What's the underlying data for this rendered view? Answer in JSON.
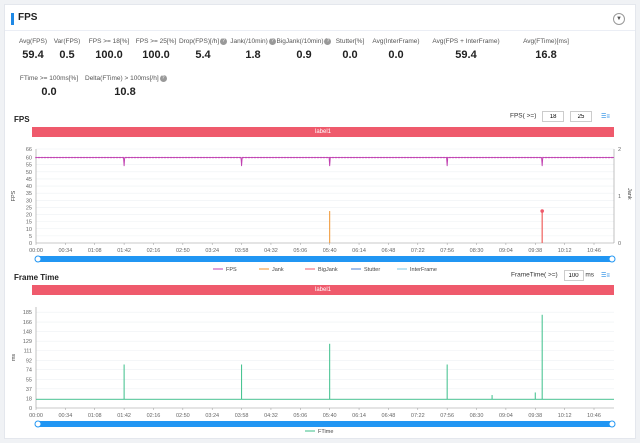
{
  "header": {
    "title": "FPS",
    "collapse_icon": "chevron-down-icon"
  },
  "metrics_row1": [
    {
      "label": "Avg(FPS)",
      "value": "59.4",
      "help": false
    },
    {
      "label": "Var(FPS)",
      "value": "0.5",
      "help": false
    },
    {
      "label": "FPS >= 18[%]",
      "value": "100.0",
      "help": false
    },
    {
      "label": "FPS >= 25[%]",
      "value": "100.0",
      "help": false
    },
    {
      "label": "Drop(FPS)[/h]",
      "value": "5.4",
      "help": true
    },
    {
      "label": "Jank(/10min)",
      "value": "1.8",
      "help": true
    },
    {
      "label": "BigJank(/10min)",
      "value": "0.9",
      "help": true
    },
    {
      "label": "Stutter[%]",
      "value": "0.0",
      "help": false
    },
    {
      "label": "Avg(InterFrame)",
      "value": "0.0",
      "help": false
    },
    {
      "label": "Avg(FPS + InterFrame)",
      "value": "59.4",
      "help": false
    },
    {
      "label": "Avg(FTime)[ms]",
      "value": "16.8",
      "help": false
    }
  ],
  "metrics_row2": [
    {
      "label": "FTime >= 100ms[%]",
      "value": "0.0",
      "help": false
    },
    {
      "label": "Delta(FTime) > 100ms[/h]",
      "value": "10.8",
      "help": true
    }
  ],
  "fps_section": {
    "title": "FPS",
    "threshold_label": "FPS( >=)",
    "threshold1": "18",
    "threshold2": "25",
    "settings_icon": "list-settings-icon",
    "banner": "label1"
  },
  "frametime_section": {
    "title": "Frame Time",
    "threshold_label": "FrameTime( >=)",
    "threshold": "100",
    "unit": "ms",
    "settings_icon": "list-settings-icon",
    "banner": "label1"
  },
  "chart_data": [
    {
      "type": "line",
      "title": "",
      "ylabel": "FPS",
      "y2label": "Jank",
      "yticks": [
        "0",
        "5",
        "10",
        "15",
        "20",
        "25",
        "30",
        "35",
        "40",
        "45",
        "50",
        "55",
        "60",
        "66"
      ],
      "ylim": [
        0,
        66
      ],
      "y2ticks": [
        "0",
        "1",
        "2"
      ],
      "y2lim": [
        0,
        2
      ],
      "xticks": [
        "00:00",
        "00:34",
        "01:08",
        "01:42",
        "02:16",
        "02:50",
        "03:24",
        "03:58",
        "04:32",
        "05:06",
        "05:40",
        "06:14",
        "06:48",
        "07:22",
        "07:56",
        "08:30",
        "09:04",
        "09:38",
        "10:12",
        "10:46"
      ],
      "legend": [
        "FPS",
        "Jank",
        "BigJank",
        "Stutter",
        "InterFrame"
      ],
      "colors": {
        "FPS": "#c03fb0",
        "Jank": "#f0932e",
        "BigJank": "#ef5a6c",
        "Stutter": "#4a7fd6",
        "InterFrame": "#7ec8e3"
      },
      "series": [
        {
          "name": "FPS",
          "baseline": 60,
          "dips": [
            {
              "x": "01:42",
              "y": 54
            },
            {
              "x": "03:58",
              "y": 54
            },
            {
              "x": "05:40",
              "y": 54
            },
            {
              "x": "07:56",
              "y": 54
            },
            {
              "x": "09:46",
              "y": 54
            }
          ]
        },
        {
          "name": "Jank",
          "spikes": [
            {
              "x": "05:40",
              "y": 1
            },
            {
              "x": "09:46",
              "y": 1
            }
          ]
        },
        {
          "name": "BigJank",
          "spikes": [
            {
              "x": "09:46",
              "y": 1
            }
          ]
        }
      ]
    },
    {
      "type": "line",
      "title": "",
      "ylabel": "ms",
      "yticks": [
        "0",
        "18",
        "37",
        "55",
        "74",
        "92",
        "111",
        "129",
        "148",
        "166",
        "185"
      ],
      "ylim": [
        0,
        195
      ],
      "xticks": [
        "00:00",
        "00:34",
        "01:08",
        "01:42",
        "02:16",
        "02:50",
        "03:24",
        "03:58",
        "04:32",
        "05:06",
        "05:40",
        "06:14",
        "06:48",
        "07:22",
        "07:56",
        "08:30",
        "09:04",
        "09:38",
        "10:12",
        "10:46"
      ],
      "legend": [
        "FTime"
      ],
      "colors": {
        "FTime": "#3bbf8a"
      },
      "series": [
        {
          "name": "FTime",
          "baseline": 16.7,
          "spikes": [
            {
              "x": "01:42",
              "y": 84
            },
            {
              "x": "03:58",
              "y": 84
            },
            {
              "x": "05:40",
              "y": 124
            },
            {
              "x": "07:56",
              "y": 84
            },
            {
              "x": "08:48",
              "y": 25
            },
            {
              "x": "09:38",
              "y": 30
            },
            {
              "x": "09:46",
              "y": 180
            }
          ]
        }
      ]
    }
  ]
}
